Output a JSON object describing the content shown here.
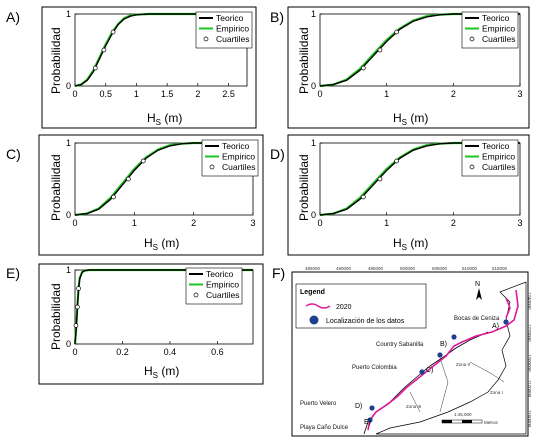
{
  "chart_data": [
    {
      "type": "line",
      "panel_label": "A)",
      "xlabel": "H",
      "xlabel_sub": "S",
      "xlabel_unit": " (m)",
      "ylabel": "Probabilidad",
      "xlim": [
        0,
        2.8
      ],
      "ylim": [
        0,
        1
      ],
      "xticks": [
        "0",
        "0.5",
        "1",
        "1.5",
        "2",
        "2.5"
      ],
      "xtick_values": [
        0,
        0.5,
        1,
        1.5,
        2,
        2.5
      ],
      "yticks": [
        "0",
        "1"
      ],
      "legend": [
        "Teorico",
        "Empirico",
        "Cuartiles"
      ],
      "legend_position": "top-right",
      "series": [
        {
          "name": "Teorico",
          "color": "#000000",
          "x": [
            0,
            0.1,
            0.2,
            0.3,
            0.4,
            0.5,
            0.6,
            0.7,
            0.8,
            0.9,
            1.0,
            1.2,
            1.5,
            2.0,
            2.8
          ],
          "y": [
            0.0,
            0.02,
            0.08,
            0.2,
            0.38,
            0.56,
            0.72,
            0.85,
            0.93,
            0.97,
            0.99,
            1.0,
            1.0,
            1.0,
            1.0
          ]
        },
        {
          "name": "Empirico",
          "color": "#21c521",
          "x": [
            0,
            0.1,
            0.2,
            0.3,
            0.4,
            0.5,
            0.6,
            0.7,
            0.8,
            0.9,
            1.0,
            1.2,
            1.5,
            2.0,
            2.8
          ],
          "y": [
            0.0,
            0.02,
            0.09,
            0.22,
            0.4,
            0.58,
            0.74,
            0.86,
            0.94,
            0.98,
            0.99,
            1.0,
            1.0,
            1.0,
            1.0
          ]
        },
        {
          "name": "Cuartiles",
          "color": "#000000",
          "marker": "circle",
          "x": [
            0.33,
            0.47,
            0.62
          ],
          "y": [
            0.25,
            0.5,
            0.75
          ]
        }
      ]
    },
    {
      "type": "line",
      "panel_label": "B)",
      "xlabel": "H",
      "xlabel_sub": "S",
      "xlabel_unit": " (m)",
      "ylabel": "Probabilidad",
      "xlim": [
        0,
        3
      ],
      "ylim": [
        0,
        1
      ],
      "xticks": [
        "0",
        "1",
        "2",
        "3"
      ],
      "xtick_values": [
        0,
        1,
        2,
        3
      ],
      "yticks": [
        "0",
        "1"
      ],
      "legend": [
        "Teorico",
        "Empirico",
        "Cuartiles"
      ],
      "legend_position": "top-right",
      "series": [
        {
          "name": "Teorico",
          "color": "#000000",
          "x": [
            0,
            0.2,
            0.4,
            0.6,
            0.8,
            1.0,
            1.2,
            1.4,
            1.6,
            1.8,
            2.0,
            2.4,
            3.0
          ],
          "y": [
            0.0,
            0.02,
            0.08,
            0.22,
            0.42,
            0.62,
            0.79,
            0.9,
            0.96,
            0.99,
            1.0,
            1.0,
            1.0
          ]
        },
        {
          "name": "Empirico",
          "color": "#21c521",
          "x": [
            0,
            0.2,
            0.4,
            0.6,
            0.8,
            1.0,
            1.2,
            1.4,
            1.6,
            1.8,
            2.0,
            2.4,
            3.0
          ],
          "y": [
            0.0,
            0.02,
            0.09,
            0.24,
            0.44,
            0.64,
            0.8,
            0.91,
            0.97,
            0.99,
            1.0,
            1.0,
            1.0
          ]
        },
        {
          "name": "Cuartiles",
          "color": "#000000",
          "marker": "circle",
          "x": [
            0.65,
            0.9,
            1.15
          ],
          "y": [
            0.25,
            0.5,
            0.75
          ]
        }
      ]
    },
    {
      "type": "line",
      "panel_label": "C)",
      "xlabel": "H",
      "xlabel_sub": "S",
      "xlabel_unit": " (m)",
      "ylabel": "Probabilidad",
      "xlim": [
        0,
        3
      ],
      "ylim": [
        0,
        1
      ],
      "xticks": [
        "0",
        "1",
        "2",
        "3"
      ],
      "xtick_values": [
        0,
        1,
        2,
        3
      ],
      "yticks": [
        "0",
        "1"
      ],
      "legend": [
        "Teorico",
        "Empirico",
        "Cuartiles"
      ],
      "legend_position": "top-right",
      "series": [
        {
          "name": "Teorico",
          "color": "#000000",
          "x": [
            0,
            0.2,
            0.4,
            0.6,
            0.8,
            1.0,
            1.2,
            1.4,
            1.6,
            1.8,
            2.0,
            2.4,
            3.0
          ],
          "y": [
            0.0,
            0.02,
            0.08,
            0.22,
            0.42,
            0.62,
            0.79,
            0.9,
            0.96,
            0.99,
            1.0,
            1.0,
            1.0
          ]
        },
        {
          "name": "Empirico",
          "color": "#21c521",
          "x": [
            0,
            0.2,
            0.4,
            0.6,
            0.8,
            1.0,
            1.2,
            1.4,
            1.6,
            1.8,
            2.0,
            2.4,
            3.0
          ],
          "y": [
            0.0,
            0.02,
            0.09,
            0.24,
            0.44,
            0.64,
            0.8,
            0.91,
            0.97,
            0.99,
            1.0,
            1.0,
            1.0
          ]
        },
        {
          "name": "Cuartiles",
          "color": "#000000",
          "marker": "circle",
          "x": [
            0.65,
            0.9,
            1.15
          ],
          "y": [
            0.25,
            0.5,
            0.75
          ]
        }
      ]
    },
    {
      "type": "line",
      "panel_label": "D)",
      "xlabel": "H",
      "xlabel_sub": "S",
      "xlabel_unit": " (m)",
      "ylabel": "Probabilidad",
      "xlim": [
        0,
        3
      ],
      "ylim": [
        0,
        1
      ],
      "xticks": [
        "0",
        "1",
        "2",
        "3"
      ],
      "xtick_values": [
        0,
        1,
        2,
        3
      ],
      "yticks": [
        "0",
        "1"
      ],
      "legend": [
        "Teorico",
        "Empirico",
        "Cuartiles"
      ],
      "legend_position": "top-right",
      "series": [
        {
          "name": "Teorico",
          "color": "#000000",
          "x": [
            0,
            0.2,
            0.4,
            0.6,
            0.8,
            1.0,
            1.2,
            1.4,
            1.6,
            1.8,
            2.0,
            2.4,
            3.0
          ],
          "y": [
            0.0,
            0.02,
            0.08,
            0.22,
            0.42,
            0.62,
            0.79,
            0.9,
            0.96,
            0.99,
            1.0,
            1.0,
            1.0
          ]
        },
        {
          "name": "Empirico",
          "color": "#21c521",
          "x": [
            0,
            0.2,
            0.4,
            0.6,
            0.8,
            1.0,
            1.2,
            1.4,
            1.6,
            1.8,
            2.0,
            2.4,
            3.0
          ],
          "y": [
            0.0,
            0.02,
            0.09,
            0.24,
            0.44,
            0.64,
            0.8,
            0.91,
            0.97,
            0.99,
            1.0,
            1.0,
            1.0
          ]
        },
        {
          "name": "Cuartiles",
          "color": "#000000",
          "marker": "circle",
          "x": [
            0.65,
            0.9,
            1.15
          ],
          "y": [
            0.25,
            0.5,
            0.75
          ]
        }
      ]
    },
    {
      "type": "line",
      "panel_label": "E)",
      "xlabel": "H",
      "xlabel_sub": "S",
      "xlabel_unit": " (m)",
      "ylabel": "Probabilidad",
      "xlim": [
        0,
        0.75
      ],
      "ylim": [
        0,
        1
      ],
      "xticks": [
        "0",
        "0.2",
        "0.4",
        "0.6"
      ],
      "xtick_values": [
        0,
        0.2,
        0.4,
        0.6
      ],
      "yticks": [
        "0",
        "1"
      ],
      "legend": [
        "Teorico",
        "Empirico",
        "Cuartiles"
      ],
      "legend_position": "top-right",
      "series": [
        {
          "name": "Teorico",
          "color": "#000000",
          "x": [
            0,
            0.005,
            0.01,
            0.015,
            0.02,
            0.03,
            0.04,
            0.06,
            0.75
          ],
          "y": [
            0.0,
            0.2,
            0.5,
            0.75,
            0.88,
            0.97,
            0.99,
            1.0,
            1.0
          ]
        },
        {
          "name": "Empirico",
          "color": "#21c521",
          "x": [
            0,
            0.005,
            0.01,
            0.015,
            0.02,
            0.03,
            0.04,
            0.06,
            0.75
          ],
          "y": [
            0.0,
            0.22,
            0.52,
            0.76,
            0.89,
            0.97,
            0.99,
            1.0,
            1.0
          ]
        },
        {
          "name": "Cuartiles",
          "color": "#000000",
          "marker": "circle",
          "x": [
            0.004,
            0.01,
            0.015
          ],
          "y": [
            0.25,
            0.5,
            0.75
          ]
        }
      ]
    }
  ],
  "map": {
    "panel_label": "F)",
    "legend_title": "Legend",
    "legend_line": "2020",
    "legend_dots": "Localización de los datos",
    "line_color": "#e0199a",
    "dot_color": "#1f3f8f",
    "top_ticks": [
      "485000",
      "490000",
      "495000",
      "500000",
      "505000",
      "510000",
      "515000"
    ],
    "right_ticks": [
      "1240000",
      "1220000",
      "1200000",
      "1170000",
      "1160000"
    ],
    "places": {
      "bocas": "Bocas de Ceniza",
      "country": "Country Sabanilla",
      "colombia": "Puerto Colombia",
      "velero": "Puerto Velero",
      "cano": "Playa Caño Dulce"
    },
    "site_labels": [
      "A)",
      "B)",
      "C)",
      "D)",
      "E)"
    ],
    "zones": [
      "Zona II",
      "Zona I",
      "Zona III"
    ],
    "scale_text": "1:45.000",
    "scale_unit": "Metros",
    "north": "N"
  }
}
